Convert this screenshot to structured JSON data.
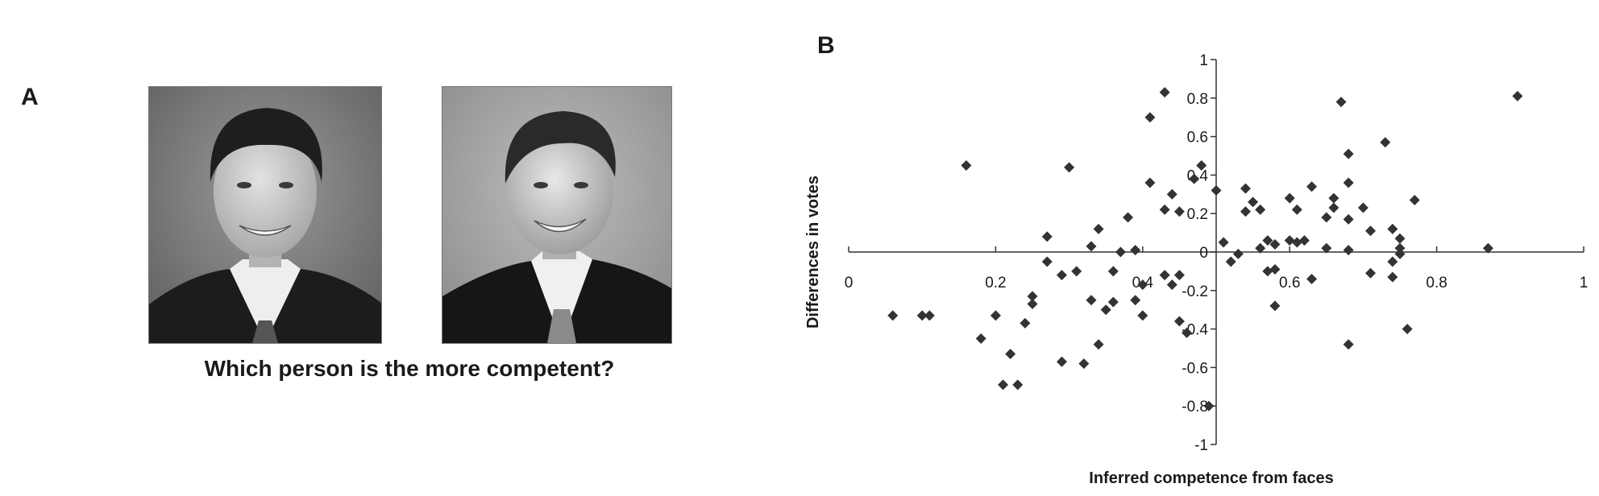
{
  "panel_a": {
    "label": "A",
    "question": "Which person is the more competent?",
    "photos": [
      "candidate-left-photo",
      "candidate-right-photo"
    ]
  },
  "panel_b": {
    "label": "B"
  },
  "chart_data": {
    "type": "scatter",
    "title": "",
    "xlabel": "Inferred competence from faces",
    "ylabel": "Differences in votes",
    "xlim": [
      0,
      1
    ],
    "ylim": [
      -1,
      1
    ],
    "x_ticks": [
      "0",
      "0.2",
      "0.4",
      "0.6",
      "0.8",
      "1"
    ],
    "y_ticks": [
      "1",
      "0.8",
      "0.6",
      "0.4",
      "0.2",
      "0",
      "-0.2",
      "-0.4",
      "-0.6",
      "-0.8",
      "-1"
    ],
    "marker": "diamond",
    "marker_color": "#333333",
    "axes_cross_at": [
      0.5,
      0
    ],
    "grid": false,
    "legend": false,
    "points": [
      [
        0.06,
        -0.33
      ],
      [
        0.1,
        -0.33
      ],
      [
        0.11,
        -0.33
      ],
      [
        0.16,
        0.45
      ],
      [
        0.18,
        -0.45
      ],
      [
        0.2,
        -0.33
      ],
      [
        0.21,
        -0.69
      ],
      [
        0.22,
        -0.53
      ],
      [
        0.23,
        -0.69
      ],
      [
        0.24,
        -0.37
      ],
      [
        0.25,
        -0.23
      ],
      [
        0.25,
        -0.27
      ],
      [
        0.27,
        0.08
      ],
      [
        0.27,
        -0.05
      ],
      [
        0.29,
        -0.12
      ],
      [
        0.29,
        -0.57
      ],
      [
        0.3,
        0.44
      ],
      [
        0.31,
        -0.1
      ],
      [
        0.32,
        -0.58
      ],
      [
        0.33,
        0.03
      ],
      [
        0.33,
        -0.25
      ],
      [
        0.34,
        0.12
      ],
      [
        0.34,
        -0.48
      ],
      [
        0.35,
        -0.3
      ],
      [
        0.36,
        -0.1
      ],
      [
        0.36,
        -0.26
      ],
      [
        0.37,
        0.0
      ],
      [
        0.38,
        0.18
      ],
      [
        0.39,
        0.01
      ],
      [
        0.39,
        -0.25
      ],
      [
        0.4,
        -0.17
      ],
      [
        0.4,
        -0.33
      ],
      [
        0.41,
        0.36
      ],
      [
        0.41,
        0.7
      ],
      [
        0.43,
        0.83
      ],
      [
        0.43,
        -0.12
      ],
      [
        0.43,
        0.22
      ],
      [
        0.44,
        0.3
      ],
      [
        0.44,
        -0.17
      ],
      [
        0.45,
        -0.12
      ],
      [
        0.45,
        -0.36
      ],
      [
        0.45,
        0.21
      ],
      [
        0.46,
        -0.42
      ],
      [
        0.47,
        0.38
      ],
      [
        0.48,
        0.45
      ],
      [
        0.49,
        -0.8
      ],
      [
        0.5,
        0.32
      ],
      [
        0.51,
        0.05
      ],
      [
        0.52,
        -0.05
      ],
      [
        0.53,
        -0.01
      ],
      [
        0.54,
        0.21
      ],
      [
        0.54,
        0.33
      ],
      [
        0.55,
        0.26
      ],
      [
        0.56,
        0.22
      ],
      [
        0.56,
        0.02
      ],
      [
        0.57,
        0.06
      ],
      [
        0.57,
        -0.1
      ],
      [
        0.58,
        0.04
      ],
      [
        0.58,
        -0.09
      ],
      [
        0.58,
        -0.28
      ],
      [
        0.6,
        0.28
      ],
      [
        0.6,
        0.06
      ],
      [
        0.61,
        0.22
      ],
      [
        0.61,
        0.05
      ],
      [
        0.62,
        0.06
      ],
      [
        0.63,
        0.34
      ],
      [
        0.63,
        -0.14
      ],
      [
        0.65,
        0.02
      ],
      [
        0.65,
        0.18
      ],
      [
        0.66,
        0.28
      ],
      [
        0.66,
        0.23
      ],
      [
        0.67,
        0.78
      ],
      [
        0.68,
        0.17
      ],
      [
        0.68,
        0.51
      ],
      [
        0.68,
        0.36
      ],
      [
        0.68,
        0.01
      ],
      [
        0.68,
        -0.48
      ],
      [
        0.7,
        0.23
      ],
      [
        0.71,
        0.11
      ],
      [
        0.71,
        -0.11
      ],
      [
        0.73,
        0.57
      ],
      [
        0.74,
        0.12
      ],
      [
        0.74,
        -0.05
      ],
      [
        0.74,
        -0.13
      ],
      [
        0.75,
        0.07
      ],
      [
        0.75,
        0.02
      ],
      [
        0.75,
        -0.01
      ],
      [
        0.76,
        -0.4
      ],
      [
        0.77,
        0.27
      ],
      [
        0.87,
        0.02
      ],
      [
        0.91,
        0.81
      ]
    ]
  }
}
